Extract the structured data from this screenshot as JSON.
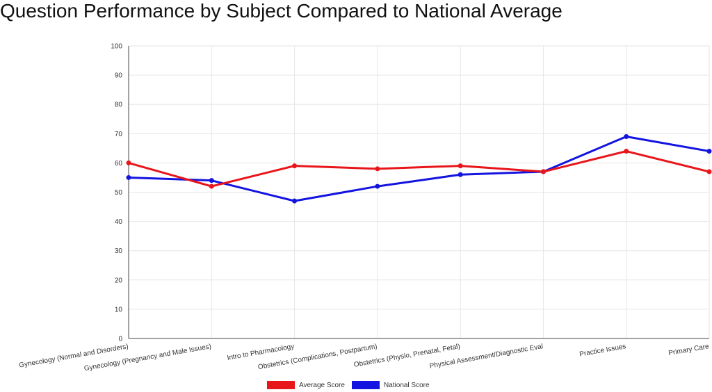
{
  "chart_data": {
    "type": "line",
    "title": "Question Performance by Subject Compared to National Average",
    "xlabel": "",
    "ylabel": "",
    "ylim": [
      0,
      100
    ],
    "yticks": [
      0,
      10,
      20,
      30,
      40,
      50,
      60,
      70,
      80,
      90,
      100
    ],
    "grid": true,
    "legend_position": "bottom",
    "categories": [
      "Gynecology (Normal and Disorders)",
      "Gynecology (Pregnancy and Male Issues)",
      "Intro to Pharmacology",
      "Obstetrics (Complications, Postpartum)",
      "Obstetrics (Physio, Prenatal, Fetal)",
      "Physical Assessment/Diagnostic Eval",
      "Practice Issues",
      "Primary Care"
    ],
    "series": [
      {
        "name": "Average Score",
        "color": "#e8161b",
        "values": [
          60,
          52,
          59,
          58,
          59,
          57,
          64,
          57
        ]
      },
      {
        "name": "National Score",
        "color": "#1414e0",
        "values": [
          55,
          54,
          47,
          52,
          56,
          57,
          69,
          64
        ]
      }
    ]
  }
}
